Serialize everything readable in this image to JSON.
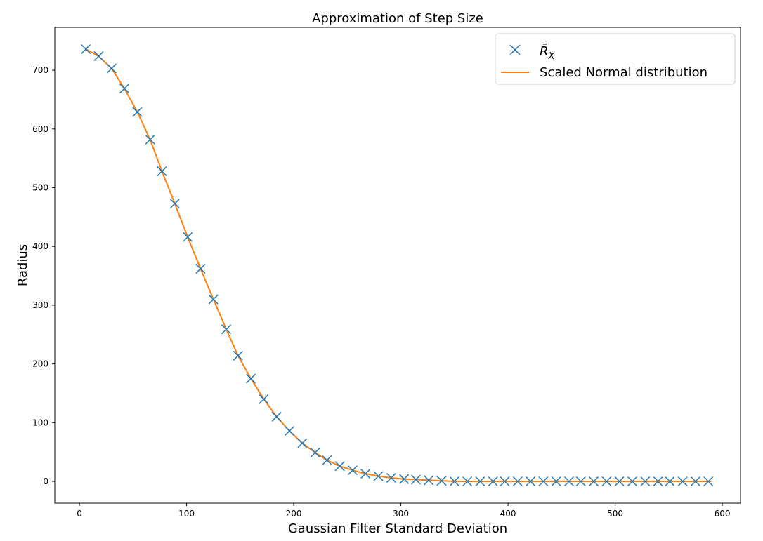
{
  "chart_data": {
    "type": "scatter",
    "title": "Approximation of Step Size",
    "xlabel": "Gaussian Filter Standard Deviation",
    "ylabel": "Radius",
    "xlim": [
      -23,
      617
    ],
    "ylim": [
      -37,
      773
    ],
    "xticks": [
      0,
      100,
      200,
      300,
      400,
      500,
      600
    ],
    "yticks": [
      0,
      100,
      200,
      300,
      400,
      500,
      600,
      700
    ],
    "grid": false,
    "legend_position": "top-right",
    "series": [
      {
        "name": "R̄X",
        "legend_label": {
          "base": "R̄",
          "subscript": "X"
        },
        "kind": "scatter",
        "marker": "x",
        "color": "#1f77b4",
        "x": [
          6,
          18,
          30,
          42,
          54,
          66,
          77,
          89,
          101,
          113,
          125,
          137,
          148,
          160,
          172,
          184,
          196,
          208,
          220,
          231,
          243,
          255,
          267,
          279,
          291,
          303,
          314,
          326,
          338,
          350,
          362,
          374,
          386,
          397,
          409,
          421,
          433,
          445,
          457,
          468,
          480,
          492,
          504,
          516,
          528,
          540,
          551,
          563,
          575,
          587
        ],
        "y": [
          736,
          724,
          703,
          669,
          629,
          582,
          528,
          473,
          416,
          362,
          310,
          259,
          214,
          175,
          140,
          110,
          86,
          65,
          49,
          36,
          26,
          19,
          13,
          9,
          6,
          4,
          3,
          2,
          1,
          0,
          0,
          0,
          0,
          0,
          0,
          0,
          0,
          0,
          0,
          0,
          0,
          0,
          0,
          0,
          0,
          0,
          0,
          0,
          0,
          0
        ]
      },
      {
        "name": "Scaled Normal distribution",
        "kind": "line",
        "color": "#ff7f0e",
        "x": [
          6,
          18,
          30,
          42,
          54,
          66,
          77,
          89,
          101,
          113,
          125,
          137,
          148,
          160,
          172,
          184,
          196,
          208,
          220,
          231,
          243,
          255,
          267,
          279,
          291,
          303,
          314,
          326,
          338,
          350,
          362,
          374,
          386,
          397,
          409,
          421,
          433,
          445,
          457,
          468,
          480,
          492,
          504,
          516,
          528,
          540,
          551,
          563,
          575,
          590
        ],
        "y": [
          736,
          724,
          703,
          669,
          629,
          582,
          528,
          473,
          416,
          362,
          310,
          259,
          214,
          175,
          140,
          110,
          86,
          65,
          49,
          36,
          26,
          19,
          13,
          9,
          6,
          4,
          3,
          2,
          1,
          0,
          0,
          0,
          0,
          0,
          0,
          0,
          0,
          0,
          0,
          0,
          0,
          0,
          0,
          0,
          0,
          0,
          0,
          0,
          0,
          0
        ]
      }
    ]
  }
}
